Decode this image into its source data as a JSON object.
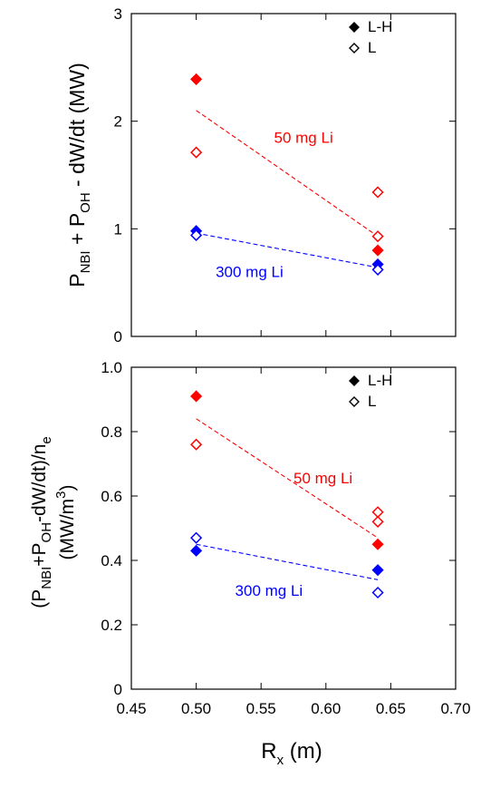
{
  "xlabel": {
    "main": "R",
    "sub": "x",
    "unit": " (m)"
  },
  "chart_data": [
    {
      "type": "scatter",
      "ylabel": {
        "p1": "P",
        "s1": "NBI",
        "t1": " + P",
        "s2": "OH",
        "t2": " - dW/dt  (MW)"
      },
      "xlim": [
        0.45,
        0.7
      ],
      "ylim": [
        0,
        3
      ],
      "xticks": [
        "0.45",
        "0.50",
        "0.55",
        "0.60",
        "0.65",
        "0.70"
      ],
      "yticks": [
        {
          "v": 0,
          "label": "0"
        },
        {
          "v": 1,
          "label": "1"
        },
        {
          "v": 2,
          "label": "2"
        },
        {
          "v": 3,
          "label": "3"
        }
      ],
      "legend": [
        {
          "label": "L-H",
          "marker": "filled-diamond"
        },
        {
          "label": "L",
          "marker": "open-diamond"
        }
      ],
      "series": [
        {
          "group": "50 mg Li",
          "type": "L-H",
          "color": "#ff0000",
          "x": [
            0.5,
            0.64
          ],
          "y": [
            2.39,
            0.8
          ]
        },
        {
          "group": "50 mg Li",
          "type": "L",
          "color": "#ff0000",
          "x": [
            0.5,
            0.64,
            0.64
          ],
          "y": [
            1.71,
            1.34,
            0.93
          ]
        },
        {
          "group": "300 mg Li",
          "type": "L-H",
          "color": "#0000ff",
          "x": [
            0.5,
            0.64
          ],
          "y": [
            0.98,
            0.67
          ]
        },
        {
          "group": "300 mg Li",
          "type": "L",
          "color": "#0000ff",
          "x": [
            0.5,
            0.64
          ],
          "y": [
            0.94,
            0.62
          ]
        }
      ],
      "trend_lines": [
        {
          "color": "#ff0000",
          "x": [
            0.5,
            0.64
          ],
          "y": [
            2.1,
            0.93
          ]
        },
        {
          "color": "#0000ff",
          "x": [
            0.5,
            0.64
          ],
          "y": [
            0.96,
            0.64
          ]
        }
      ],
      "annotations": [
        {
          "text": "50 mg Li",
          "color": "#ff0000",
          "x": 0.56,
          "y": 1.8
        },
        {
          "text": "300 mg Li",
          "color": "#0000ff",
          "x": 0.515,
          "y": 0.55
        }
      ]
    },
    {
      "type": "scatter",
      "ylabel_line1": {
        "t1": "(P",
        "s1": "NBI",
        "t2": "+P",
        "s2": "OH",
        "t3": "-dW/dt)/n",
        "s3": "e"
      },
      "ylabel_line2": {
        "t1": "(MW/m",
        "sup": "3",
        "t2": ")"
      },
      "xlim": [
        0.45,
        0.7
      ],
      "ylim": [
        0,
        1.0
      ],
      "xticks": [
        "0.45",
        "0.50",
        "0.55",
        "0.60",
        "0.65",
        "0.70"
      ],
      "yticks": [
        {
          "v": 0,
          "label": "0"
        },
        {
          "v": 0.2,
          "label": "0.2"
        },
        {
          "v": 0.4,
          "label": "0.4"
        },
        {
          "v": 0.6,
          "label": "0.6"
        },
        {
          "v": 0.8,
          "label": "0.8"
        },
        {
          "v": 1.0,
          "label": "1.0"
        }
      ],
      "legend": [
        {
          "label": "L-H",
          "marker": "filled-diamond"
        },
        {
          "label": "L",
          "marker": "open-diamond"
        }
      ],
      "series": [
        {
          "group": "50 mg Li",
          "type": "L-H",
          "color": "#ff0000",
          "x": [
            0.5,
            0.64
          ],
          "y": [
            0.91,
            0.45
          ]
        },
        {
          "group": "50 mg Li",
          "type": "L",
          "color": "#ff0000",
          "x": [
            0.5,
            0.64,
            0.64
          ],
          "y": [
            0.76,
            0.55,
            0.52
          ]
        },
        {
          "group": "300 mg Li",
          "type": "L-H",
          "color": "#0000ff",
          "x": [
            0.5,
            0.64
          ],
          "y": [
            0.43,
            0.37
          ]
        },
        {
          "group": "300 mg Li",
          "type": "L",
          "color": "#0000ff",
          "x": [
            0.5,
            0.64
          ],
          "y": [
            0.47,
            0.3
          ]
        }
      ],
      "trend_lines": [
        {
          "color": "#ff0000",
          "x": [
            0.5,
            0.64
          ],
          "y": [
            0.84,
            0.47
          ]
        },
        {
          "color": "#0000ff",
          "x": [
            0.5,
            0.64
          ],
          "y": [
            0.45,
            0.34
          ]
        }
      ],
      "annotations": [
        {
          "text": "50 mg Li",
          "color": "#ff0000",
          "x": 0.575,
          "y": 0.64
        },
        {
          "text": "300 mg Li",
          "color": "#0000ff",
          "x": 0.53,
          "y": 0.29
        }
      ]
    }
  ]
}
